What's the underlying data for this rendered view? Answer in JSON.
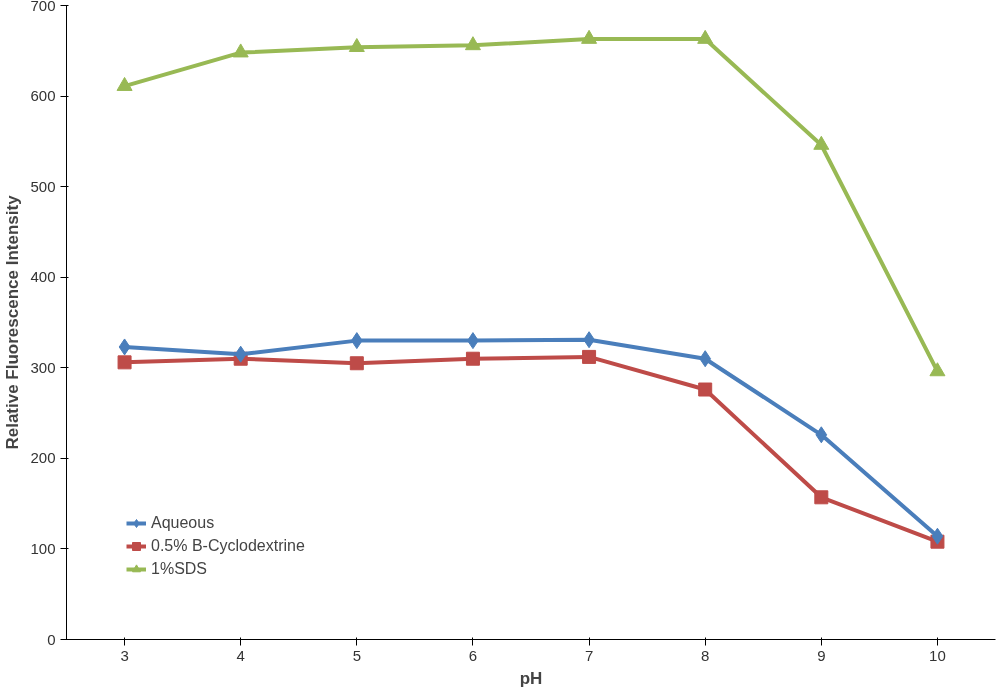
{
  "chart_data": {
    "type": "line",
    "xlabel": "pH",
    "ylabel": "Relative Fluorescence Intensity",
    "categories": [
      "3",
      "4",
      "5",
      "6",
      "7",
      "8",
      "9",
      "10"
    ],
    "ylim": [
      0,
      700
    ],
    "yticks": [
      0,
      100,
      200,
      300,
      400,
      500,
      600,
      700
    ],
    "grid": false,
    "legend": "bottom left",
    "line_style": "solid",
    "series": [
      {
        "name": "Aqueous",
        "color": "#4a7ebb",
        "marker": "diamond",
        "values": [
          323,
          315,
          330,
          330,
          331,
          310,
          226,
          114
        ]
      },
      {
        "name": "0.5% B-Cyclodextrine",
        "color": "#be4b48",
        "marker": "square",
        "values": [
          306,
          310,
          305,
          310,
          312,
          276,
          157,
          108
        ]
      },
      {
        "name": "1%SDS",
        "color": "#98b954",
        "marker": "triangle",
        "values": [
          611,
          648,
          654,
          656,
          663,
          663,
          546,
          296
        ]
      }
    ]
  }
}
